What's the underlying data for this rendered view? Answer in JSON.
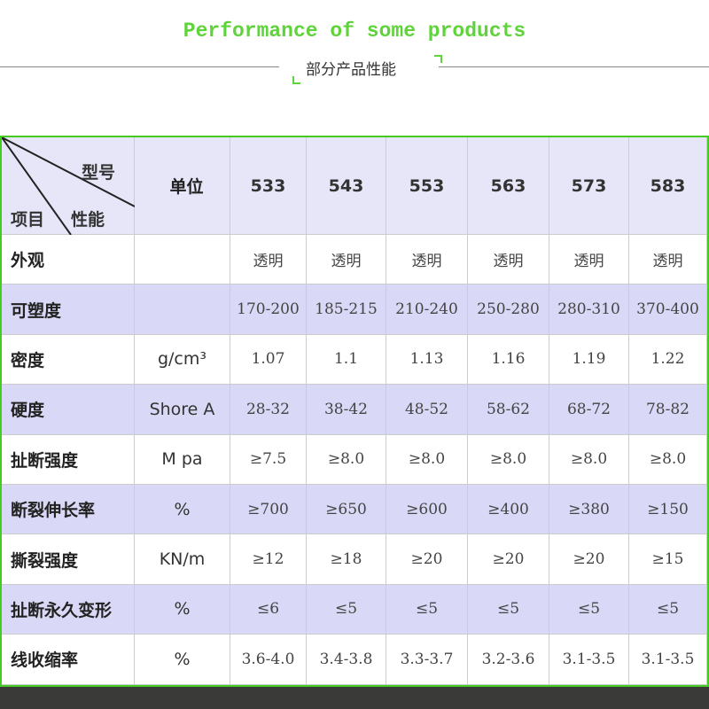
{
  "header": {
    "title": "Performance of some products",
    "subtitle": "部分产品性能"
  },
  "table": {
    "corner": {
      "model": "型号",
      "item": "项目",
      "property": "性能"
    },
    "unit_header": "单位",
    "models": [
      "533",
      "543",
      "553",
      "563",
      "573",
      "583"
    ],
    "rows": [
      {
        "label": "外观",
        "unit": null,
        "values": [
          "透明",
          "透明",
          "透明",
          "透明",
          "透明",
          "透明"
        ]
      },
      {
        "label": "可塑度",
        "unit": null,
        "values": [
          "170-200",
          "185-215",
          "210-240",
          "250-280",
          "280-310",
          "370-400"
        ]
      },
      {
        "label": "密度",
        "unit": "g/cm³",
        "values": [
          "1.07",
          "1.1",
          "1.13",
          "1.16",
          "1.19",
          "1.22"
        ]
      },
      {
        "label": "硬度",
        "unit": "Shore A",
        "values": [
          "28-32",
          "38-42",
          "48-52",
          "58-62",
          "68-72",
          "78-82"
        ]
      },
      {
        "label": "扯断强度",
        "unit": "M pa",
        "values": [
          "≥7.5",
          "≥8.0",
          "≥8.0",
          "≥8.0",
          "≥8.0",
          "≥8.0"
        ]
      },
      {
        "label": "断裂伸长率",
        "unit": "%",
        "values": [
          "≥700",
          "≥650",
          "≥600",
          "≥400",
          "≥380",
          "≥150"
        ]
      },
      {
        "label": "撕裂强度",
        "unit": "KN/m",
        "values": [
          "≥12",
          "≥18",
          "≥20",
          "≥20",
          "≥20",
          "≥15"
        ]
      },
      {
        "label": "扯断永久变形",
        "unit": "%",
        "values": [
          "≤6",
          "≤5",
          "≤5",
          "≤5",
          "≤5",
          "≤5"
        ]
      },
      {
        "label": "线收缩率",
        "unit": "%",
        "values": [
          "3.6-4.0",
          "3.4-3.8",
          "3.3-3.7",
          "3.2-3.6",
          "3.1-3.5",
          "3.1-3.5"
        ]
      }
    ]
  }
}
